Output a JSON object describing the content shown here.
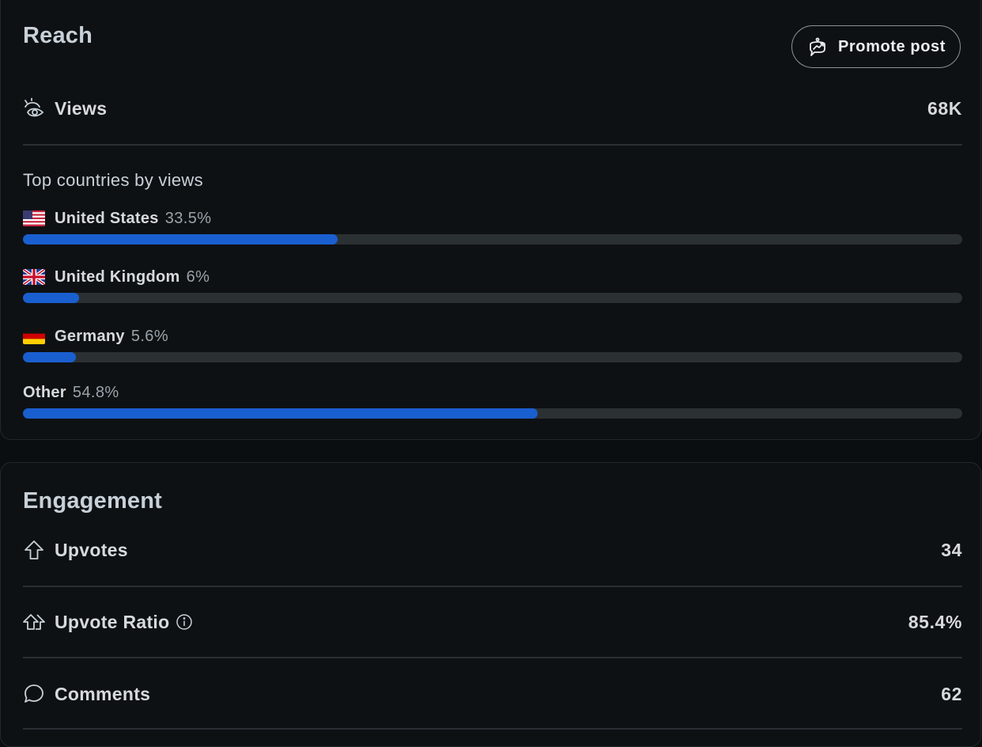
{
  "reach": {
    "title": "Reach",
    "promote_label": "Promote post",
    "views": {
      "label": "Views",
      "value": "68K"
    },
    "countries_heading": "Top countries by views",
    "countries": [
      {
        "name": "United States",
        "percent_label": "33.5%",
        "percent": 33.5,
        "flag": "us-flag-icon"
      },
      {
        "name": "United Kingdom",
        "percent_label": "6%",
        "percent": 6,
        "flag": "uk-flag-icon"
      },
      {
        "name": "Germany",
        "percent_label": "5.6%",
        "percent": 5.6,
        "flag": "de-flag-icon"
      },
      {
        "name": "Other",
        "percent_label": "54.8%",
        "percent": 54.8,
        "flag": null
      }
    ]
  },
  "engagement": {
    "title": "Engagement",
    "upvotes": {
      "label": "Upvotes",
      "value": "34"
    },
    "upvote_ratio": {
      "label": "Upvote Ratio",
      "value": "85.4%"
    },
    "comments": {
      "label": "Comments",
      "value": "62"
    }
  },
  "colors": {
    "bar_fill": "#1a5fd0",
    "bar_track": "#2b3033",
    "background": "#0e1114"
  }
}
